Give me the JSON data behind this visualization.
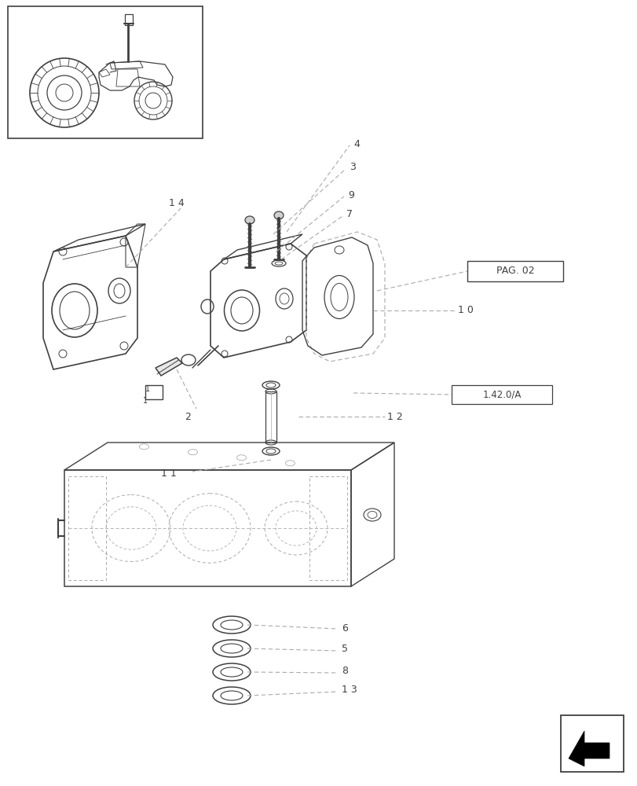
{
  "bg_color": "#ffffff",
  "line_color": "#404040",
  "light_line_color": "#aaaaaa",
  "pag_label": "PAG. 02",
  "ref_label": "1.42.0/A"
}
